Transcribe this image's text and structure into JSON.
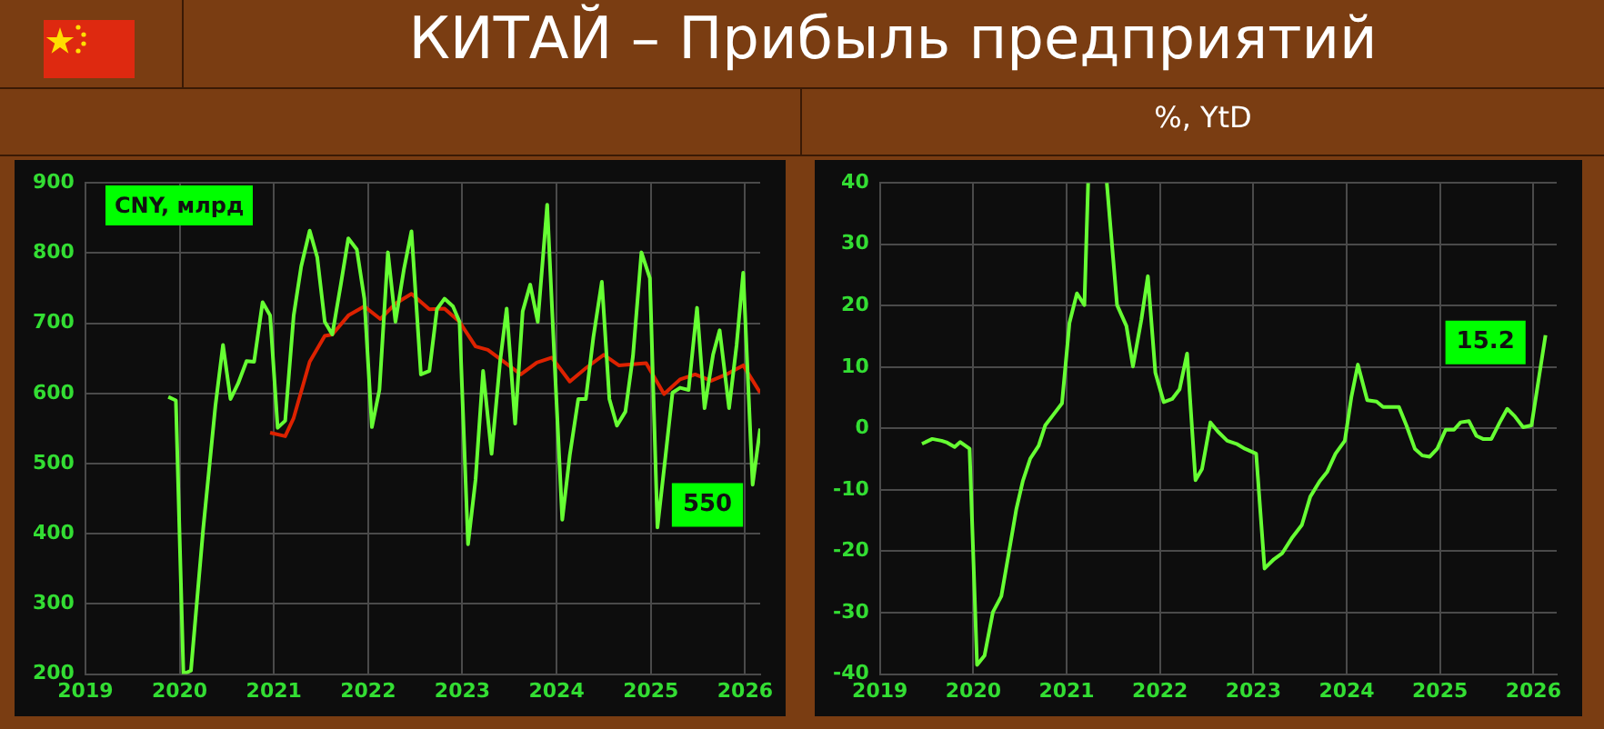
{
  "chart_data": [
    {
      "type": "line",
      "title": "КИТАЙ – Прибыль предприятий",
      "ylabel": "CNY, млрд",
      "xlim": [
        2019,
        2026.16
      ],
      "xticks": [
        2019,
        2020,
        2021,
        2022,
        2023,
        2024,
        2025,
        2026
      ],
      "ylim": [
        200,
        900
      ],
      "yticks": [
        200,
        300,
        400,
        500,
        600,
        700,
        800,
        900
      ],
      "grid": true,
      "legend": false,
      "marker": "none",
      "line_style": "solid",
      "annotations": [
        {
          "text": "550",
          "x": 2026.16,
          "y": 550
        }
      ],
      "series": [
        {
          "color": "#66ff33",
          "x": [
            2019.88,
            2019.96,
            2020.04,
            2020.12,
            2020.25,
            2020.38,
            2020.46,
            2020.54,
            2020.62,
            2020.71,
            2020.79,
            2020.88,
            2020.96,
            2021.04,
            2021.12,
            2021.21,
            2021.29,
            2021.38,
            2021.46,
            2021.54,
            2021.62,
            2021.71,
            2021.79,
            2021.88,
            2021.96,
            2022.04,
            2022.12,
            2022.21,
            2022.29,
            2022.38,
            2022.46,
            2022.56,
            2022.65,
            2022.73,
            2022.81,
            2022.9,
            2022.97,
            2023.06,
            2023.14,
            2023.22,
            2023.31,
            2023.4,
            2023.47,
            2023.56,
            2023.64,
            2023.72,
            2023.8,
            2023.9,
            2023.98,
            2024.06,
            2024.14,
            2024.23,
            2024.31,
            2024.39,
            2024.48,
            2024.56,
            2024.64,
            2024.73,
            2024.81,
            2024.9,
            2024.99,
            2025.07,
            2025.15,
            2025.23,
            2025.31,
            2025.4,
            2025.49,
            2025.57,
            2025.66,
            2025.73,
            2025.83,
            2025.91,
            2025.98,
            2026.08,
            2026.16
          ],
          "values": [
            595,
            590,
            200,
            205,
            407,
            583,
            669,
            592,
            614,
            646,
            645,
            730,
            711,
            551,
            561,
            711,
            781,
            832,
            794,
            702,
            684,
            755,
            821,
            805,
            735,
            552,
            605,
            801,
            702,
            777,
            831,
            627,
            632,
            720,
            735,
            724,
            702,
            385,
            477,
            632,
            514,
            645,
            721,
            557,
            717,
            755,
            702,
            869,
            640,
            420,
            512,
            592,
            592,
            680,
            759,
            592,
            554,
            574,
            653,
            801,
            764,
            409,
            504,
            601,
            608,
            605,
            722,
            579,
            655,
            690,
            579,
            669,
            772,
            470,
            550
          ]
        },
        {
          "color": "#dd2200",
          "x": [
            2020.96,
            2021.12,
            2021.21,
            2021.38,
            2021.54,
            2021.62,
            2021.79,
            2021.96,
            2022.13,
            2022.29,
            2022.46,
            2022.65,
            2022.81,
            2022.97,
            2023.14,
            2023.27,
            2023.4,
            2023.62,
            2023.79,
            2023.95,
            2024.14,
            2024.31,
            2024.5,
            2024.66,
            2024.95,
            2025.14,
            2025.31,
            2025.47,
            2025.64,
            2025.8,
            2025.98,
            2026.16
          ],
          "values": [
            544,
            539,
            565,
            645,
            682,
            684,
            711,
            724,
            706,
            728,
            742,
            720,
            721,
            702,
            667,
            662,
            649,
            627,
            644,
            651,
            617,
            636,
            655,
            640,
            643,
            599,
            620,
            627,
            618,
            627,
            640,
            601
          ]
        }
      ]
    },
    {
      "type": "line",
      "ylabel": "%, YtD",
      "xlim": [
        2019,
        2026.25
      ],
      "xticks": [
        2019,
        2020,
        2021,
        2022,
        2023,
        2024,
        2025,
        2026
      ],
      "ylim": [
        -40,
        40
      ],
      "yticks": [
        -40,
        -30,
        -20,
        -10,
        0,
        10,
        20,
        30,
        40
      ],
      "grid": true,
      "legend": false,
      "marker": "none",
      "line_style": "solid",
      "annotations": [
        {
          "text": "15.2",
          "x": 2026.13,
          "y": 15.2
        }
      ],
      "series": [
        {
          "color": "#66ff33",
          "x": [
            2019.45,
            2019.56,
            2019.66,
            2019.72,
            2019.8,
            2019.86,
            2019.96,
            2020.04,
            2020.12,
            2020.21,
            2020.3,
            2020.38,
            2020.46,
            2020.53,
            2020.61,
            2020.7,
            2020.77,
            2020.86,
            2020.95,
            2021.03,
            2021.11,
            2021.19,
            2021.23,
            2021.33,
            2021.43,
            2021.54,
            2021.64,
            2021.71,
            2021.8,
            2021.87,
            2021.95,
            2022.04,
            2022.13,
            2022.21,
            2022.29,
            2022.38,
            2022.45,
            2022.54,
            2022.62,
            2022.72,
            2022.82,
            2022.91,
            2023.03,
            2023.12,
            2023.22,
            2023.31,
            2023.41,
            2023.52,
            2023.61,
            2023.71,
            2023.79,
            2023.88,
            2023.98,
            2024.05,
            2024.12,
            2024.22,
            2024.32,
            2024.39,
            2024.49,
            2024.56,
            2024.64,
            2024.73,
            2024.81,
            2024.89,
            2024.97,
            2025.06,
            2025.15,
            2025.22,
            2025.31,
            2025.39,
            2025.46,
            2025.55,
            2025.64,
            2025.72,
            2025.8,
            2025.89,
            2025.98,
            2026.13
          ],
          "values": [
            -2.5,
            -1.7,
            -2,
            -2.3,
            -3,
            -2.2,
            -3.3,
            -38.5,
            -37,
            -29.9,
            -27.3,
            -20.3,
            -13.2,
            -8.6,
            -4.9,
            -2.8,
            0.5,
            2.3,
            4.1,
            17.2,
            22,
            20.1,
            40,
            null,
            40,
            20.1,
            16.7,
            10.1,
            17.7,
            24.8,
            9.1,
            4.3,
            4.8,
            6.4,
            12.2,
            -8.4,
            -6.6,
            1,
            -0.5,
            -2,
            -2.5,
            -3.3,
            -4.1,
            -22.8,
            -21.3,
            -20.3,
            -17.9,
            -15.7,
            -11.1,
            -8.6,
            -7.1,
            -4.1,
            -2,
            5.1,
            10.4,
            4.6,
            4.4,
            3.5,
            3.5,
            3.5,
            0.5,
            -3.3,
            -4.4,
            -4.6,
            -3.3,
            -0.2,
            -0.2,
            1,
            1.2,
            -1.2,
            -1.7,
            -1.7,
            1,
            3.2,
            2,
            0.2,
            0.5,
            15.2
          ]
        }
      ]
    }
  ]
}
